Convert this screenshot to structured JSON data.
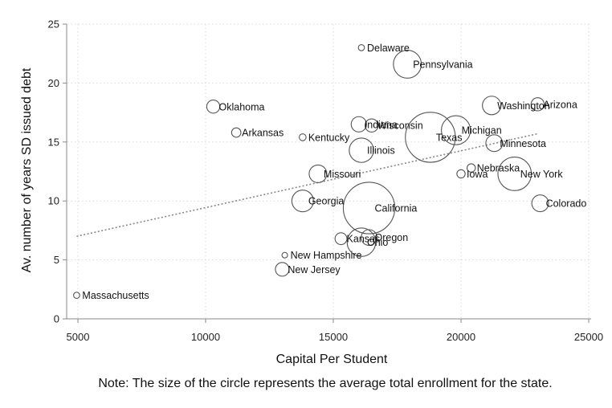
{
  "chart_data": {
    "type": "scatter",
    "title": "",
    "xlabel": "Capital Per Student",
    "ylabel": "Av. number of years SD issued debt",
    "xlim": [
      4900,
      25000
    ],
    "ylim": [
      0,
      25
    ],
    "xticks": [
      5000,
      10000,
      15000,
      20000,
      25000
    ],
    "yticks": [
      0,
      5,
      10,
      15,
      20,
      25
    ],
    "xtick_labels": [
      "5000",
      "10000",
      "15000",
      "20000",
      "25000"
    ],
    "ytick_labels": [
      "0",
      "5",
      "10",
      "15",
      "20",
      "25"
    ],
    "grid": true,
    "marker_size_meaning": "average total enrollment",
    "note": "Note: The size of the circle represents the average total enrollment for the state.",
    "fit_line": {
      "style": "dotted",
      "x": [
        4950,
        23000
      ],
      "y": [
        7.0,
        15.7
      ]
    },
    "points": [
      {
        "label": "Delaware",
        "x": 16100,
        "y": 23.0,
        "size": 0.12
      },
      {
        "label": "Pennsylvania",
        "x": 17900,
        "y": 21.6,
        "size": 2.5
      },
      {
        "label": "Oklahoma",
        "x": 10300,
        "y": 18.0,
        "size": 0.55
      },
      {
        "label": "Washington",
        "x": 21200,
        "y": 18.1,
        "size": 1.1
      },
      {
        "label": "Arizona",
        "x": 23000,
        "y": 18.2,
        "size": 0.55
      },
      {
        "label": "Arkansas",
        "x": 11200,
        "y": 15.8,
        "size": 0.28
      },
      {
        "label": "Kentucky",
        "x": 13800,
        "y": 15.4,
        "size": 0.15
      },
      {
        "label": "Indiana",
        "x": 16000,
        "y": 16.5,
        "size": 0.75
      },
      {
        "label": "Wisconsin",
        "x": 16500,
        "y": 16.4,
        "size": 0.55
      },
      {
        "label": "Michigan",
        "x": 19800,
        "y": 16.0,
        "size": 2.7
      },
      {
        "label": "Texas",
        "x": 18800,
        "y": 15.4,
        "size": 8.0
      },
      {
        "label": "Minnesota",
        "x": 21300,
        "y": 14.9,
        "size": 0.9
      },
      {
        "label": "Illinois",
        "x": 16100,
        "y": 14.3,
        "size": 1.9
      },
      {
        "label": "Nebraska",
        "x": 20400,
        "y": 12.8,
        "size": 0.22
      },
      {
        "label": "Iowa",
        "x": 20000,
        "y": 12.3,
        "size": 0.22
      },
      {
        "label": "New York",
        "x": 22100,
        "y": 12.3,
        "size": 3.6
      },
      {
        "label": "Missouri",
        "x": 14400,
        "y": 12.3,
        "size": 1.0
      },
      {
        "label": "California",
        "x": 16400,
        "y": 9.4,
        "size": 8.5
      },
      {
        "label": "Georgia",
        "x": 13800,
        "y": 10.0,
        "size": 1.5
      },
      {
        "label": "Colorado",
        "x": 23100,
        "y": 9.8,
        "size": 0.9
      },
      {
        "label": "Kansas",
        "x": 15300,
        "y": 6.8,
        "size": 0.45
      },
      {
        "label": "Ohio",
        "x": 16100,
        "y": 6.5,
        "size": 2.6
      },
      {
        "label": "Oregon",
        "x": 16400,
        "y": 6.9,
        "size": 0.8
      },
      {
        "label": "New Hampshire",
        "x": 13100,
        "y": 5.4,
        "size": 0.1
      },
      {
        "label": "New Jersey",
        "x": 13000,
        "y": 4.2,
        "size": 0.6
      },
      {
        "label": "Massachusetts",
        "x": 4950,
        "y": 2.0,
        "size": 0.12
      }
    ]
  },
  "colors": {
    "marker_stroke": "#555555",
    "fit_line": "#888888",
    "grid": "#d9d9d9",
    "axis": "#888888"
  }
}
